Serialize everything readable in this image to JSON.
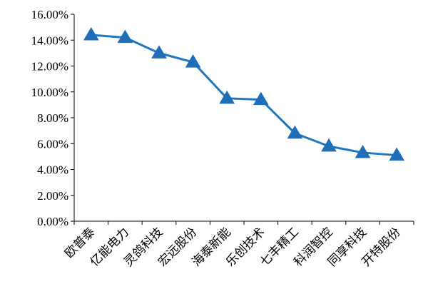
{
  "chart_data": {
    "type": "line",
    "title": "",
    "xlabel": "",
    "ylabel": "",
    "categories": [
      "欧普泰",
      "亿能电力",
      "灵鸽科技",
      "宏远股份",
      "海泰新能",
      "乐创技术",
      "七丰精工",
      "科润智控",
      "同享科技",
      "开特股份"
    ],
    "series": [
      {
        "values": [
          14.4,
          14.2,
          13.0,
          12.3,
          9.5,
          9.4,
          6.8,
          5.8,
          5.3,
          5.1
        ]
      }
    ],
    "ylim": [
      0,
      16
    ],
    "yticks": [
      "0.00%",
      "2.00%",
      "4.00%",
      "6.00%",
      "8.00%",
      "10.00%",
      "12.00%",
      "14.00%",
      "16.00%"
    ],
    "grid": false,
    "legend": "none",
    "colors": {
      "line": "#1f77c4",
      "marker": "#1f6fb8",
      "axis": "#000000"
    },
    "marker": "triangle"
  }
}
